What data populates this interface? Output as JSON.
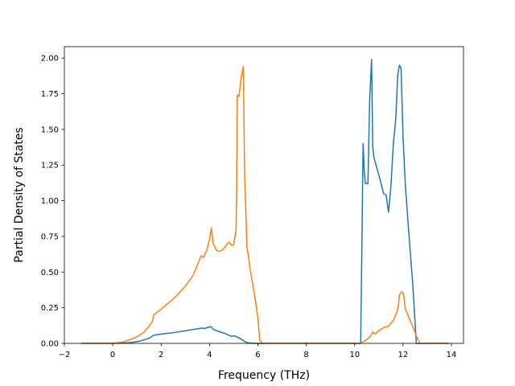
{
  "chart_data": {
    "type": "line",
    "title": "",
    "xlabel": "Frequency (THz)",
    "ylabel": "Partial Density of States",
    "xlim": [
      -2,
      14.5
    ],
    "ylim": [
      0,
      2.08
    ],
    "xticks": [
      -2,
      0,
      2,
      4,
      6,
      8,
      10,
      12,
      14
    ],
    "xtick_labels": [
      "−2",
      "0",
      "2",
      "4",
      "6",
      "8",
      "10",
      "12",
      "14"
    ],
    "yticks": [
      0,
      0.25,
      0.5,
      0.75,
      1.0,
      1.25,
      1.5,
      1.75,
      2.0
    ],
    "ytick_labels": [
      "0.00",
      "0.25",
      "0.50",
      "0.75",
      "1.00",
      "1.25",
      "1.50",
      "1.75",
      "2.00"
    ],
    "grid": false,
    "legend": "none",
    "series": [
      {
        "color": "#1f77b4",
        "x": [
          -1.3,
          0.0,
          0.6,
          1.0,
          1.2,
          1.4,
          1.55,
          1.7,
          2.0,
          2.5,
          3.0,
          3.5,
          3.65,
          3.8,
          4.0,
          4.05,
          4.15,
          4.3,
          4.6,
          4.9,
          5.05,
          5.2,
          5.35,
          5.5,
          5.65,
          5.8,
          6.0,
          6.5,
          8.0,
          10.2,
          10.25,
          10.35,
          10.4,
          10.45,
          10.55,
          10.62,
          10.7,
          10.75,
          10.8,
          11.0,
          11.2,
          11.3,
          11.4,
          11.5,
          11.6,
          11.7,
          11.78,
          11.85,
          11.92,
          12.0,
          12.1,
          12.25,
          12.4,
          12.55,
          12.7,
          13.0,
          13.9
        ],
        "values": [
          0.0,
          0.0,
          0.003,
          0.012,
          0.02,
          0.03,
          0.04,
          0.058,
          0.065,
          0.075,
          0.088,
          0.102,
          0.107,
          0.105,
          0.115,
          0.118,
          0.1,
          0.088,
          0.072,
          0.05,
          0.052,
          0.04,
          0.025,
          0.008,
          0.002,
          0.0,
          0.0,
          0.0,
          0.0,
          0.0,
          0.0,
          1.4,
          1.2,
          1.12,
          1.12,
          1.7,
          1.99,
          1.37,
          1.3,
          1.18,
          1.05,
          1.04,
          0.92,
          1.1,
          1.4,
          1.57,
          1.88,
          1.95,
          1.93,
          1.45,
          1.1,
          0.75,
          0.42,
          0.0,
          0.0,
          0.0,
          0.0
        ]
      },
      {
        "color": "#ff7f0e",
        "x": [
          -1.3,
          0.0,
          0.5,
          1.0,
          1.3,
          1.5,
          1.65,
          1.7,
          2.0,
          2.5,
          3.0,
          3.3,
          3.5,
          3.55,
          3.65,
          3.75,
          3.9,
          4.0,
          4.08,
          4.15,
          4.3,
          4.45,
          4.6,
          4.7,
          4.8,
          4.9,
          5.0,
          5.1,
          5.12,
          5.15,
          5.22,
          5.3,
          5.4,
          5.45,
          5.55,
          5.6,
          5.7,
          5.8,
          5.9,
          6.0,
          6.08,
          6.2,
          7.0,
          9.0,
          10.2,
          10.45,
          10.6,
          10.68,
          10.75,
          10.85,
          11.0,
          11.2,
          11.4,
          11.6,
          11.7,
          11.8,
          11.85,
          11.95,
          12.02,
          12.1,
          12.25,
          12.45,
          12.55,
          12.7,
          13.9
        ],
        "values": [
          0.0,
          0.0,
          0.012,
          0.045,
          0.08,
          0.12,
          0.16,
          0.2,
          0.24,
          0.31,
          0.4,
          0.47,
          0.55,
          0.57,
          0.615,
          0.6,
          0.66,
          0.73,
          0.81,
          0.7,
          0.65,
          0.645,
          0.665,
          0.69,
          0.71,
          0.69,
          0.69,
          0.8,
          1.05,
          1.74,
          1.73,
          1.85,
          1.94,
          1.2,
          0.67,
          0.62,
          0.5,
          0.4,
          0.3,
          0.18,
          0.02,
          0.0,
          0.0,
          0.0,
          0.0,
          0.02,
          0.04,
          0.06,
          0.08,
          0.065,
          0.09,
          0.11,
          0.12,
          0.16,
          0.2,
          0.25,
          0.34,
          0.362,
          0.35,
          0.24,
          0.18,
          0.1,
          0.05,
          0.0,
          0.0
        ]
      }
    ]
  }
}
